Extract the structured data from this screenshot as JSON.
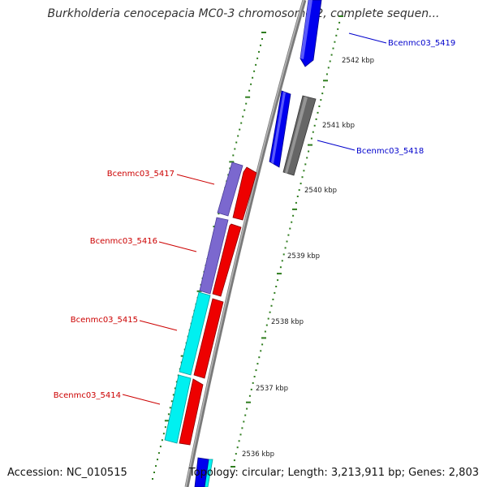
{
  "title": "Burkholderia cenocepacia MC0-3 chromosome 2, complete sequen...",
  "accession": "Accession: NC_010515",
  "stats": "Topology: circular; Length: 3,213,911 bp; Genes: 2,803",
  "colors": {
    "backbone": "#7a7a7a",
    "tick": "#2f7d1f",
    "plus_strand_cds": "#0000ee",
    "minus_strand_cds": "#ee0000",
    "gene_purple": "#7b68cf",
    "gene_cyan": "#00f0f0",
    "gene_grey": "#666666",
    "label_blue": "#0000cc",
    "label_red": "#cc0000"
  },
  "kbp_marks": [
    "2536 kbp",
    "2537 kbp",
    "2538 kbp",
    "2539 kbp",
    "2540 kbp",
    "2541 kbp",
    "2542 kbp"
  ],
  "genes": [
    {
      "name": "Bcenmc03_5419",
      "strand": "+",
      "color": "#0000cc"
    },
    {
      "name": "Bcenmc03_5418",
      "strand": "+",
      "color": "#0000cc"
    },
    {
      "name": "Bcenmc03_5417",
      "strand": "-",
      "color": "#cc0000"
    },
    {
      "name": "Bcenmc03_5416",
      "strand": "-",
      "color": "#cc0000"
    },
    {
      "name": "Bcenmc03_5415",
      "strand": "-",
      "color": "#cc0000"
    },
    {
      "name": "Bcenmc03_5414",
      "strand": "-",
      "color": "#cc0000"
    }
  ]
}
